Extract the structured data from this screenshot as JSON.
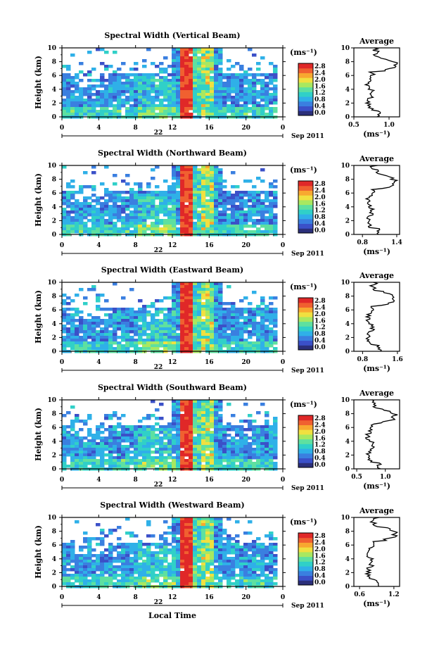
{
  "figure": {
    "xlabel": "Local Time",
    "date_label": "Sep 2011",
    "day_label": "22"
  },
  "chart_data": [
    {
      "type": "heatmap",
      "title": "Spectral Width (Vertical Beam)",
      "xlabel": "",
      "ylabel": "Height (km)",
      "x_ticks": [
        "0",
        "4",
        "8",
        "12",
        "16",
        "20",
        "0"
      ],
      "y_ticks": [
        "0",
        "2",
        "4",
        "6",
        "8",
        "10"
      ],
      "xlim": [
        0,
        24
      ],
      "ylim": [
        0,
        10
      ],
      "colorbar": {
        "unit": "(ms⁻¹)",
        "ticks": [
          "0.0",
          "0.4",
          "0.8",
          "1.2",
          "1.6",
          "2.0",
          "2.4",
          "2.8"
        ]
      },
      "profile": {
        "title": "Average",
        "xlabel": "(ms⁻¹)",
        "x_ticks": [
          "0.5",
          "1.0"
        ],
        "xlim": [
          0.5,
          1.15
        ],
        "y_ticks": [
          "0",
          "2",
          "4",
          "6",
          "8",
          "10"
        ]
      }
    },
    {
      "type": "heatmap",
      "title": "Spectral Width (Northward Beam)",
      "xlabel": "",
      "ylabel": "Height (km)",
      "x_ticks": [
        "0",
        "4",
        "8",
        "12",
        "16",
        "20",
        "0"
      ],
      "y_ticks": [
        "0",
        "2",
        "4",
        "6",
        "8",
        "10"
      ],
      "xlim": [
        0,
        24
      ],
      "ylim": [
        0,
        10
      ],
      "colorbar": {
        "unit": "(ms⁻¹)",
        "ticks": [
          "0.0",
          "0.4",
          "0.8",
          "1.2",
          "1.6",
          "2.0",
          "2.4",
          "2.8"
        ]
      },
      "profile": {
        "title": "Average",
        "xlabel": "(ms⁻¹)",
        "x_ticks": [
          "0.8",
          "1.4"
        ],
        "xlim": [
          0.65,
          1.45
        ],
        "y_ticks": [
          "0",
          "2",
          "4",
          "6",
          "8",
          "10"
        ]
      }
    },
    {
      "type": "heatmap",
      "title": "Spectral Width (Eastward Beam)",
      "xlabel": "",
      "ylabel": "Height (km)",
      "x_ticks": [
        "0",
        "4",
        "8",
        "12",
        "16",
        "20",
        "0"
      ],
      "y_ticks": [
        "0",
        "2",
        "4",
        "6",
        "8",
        "10"
      ],
      "xlim": [
        0,
        24
      ],
      "ylim": [
        0,
        10
      ],
      "colorbar": {
        "unit": "(ms⁻¹)",
        "ticks": [
          "0.0",
          "0.4",
          "0.8",
          "1.2",
          "1.6",
          "2.0",
          "2.4",
          "2.8"
        ]
      },
      "profile": {
        "title": "Average",
        "xlabel": "(ms⁻¹)",
        "x_ticks": [
          "0.8",
          "1.6"
        ],
        "xlim": [
          0.6,
          1.65
        ],
        "y_ticks": [
          "0",
          "2",
          "4",
          "6",
          "8",
          "10"
        ]
      }
    },
    {
      "type": "heatmap",
      "title": "Spectral Width (Southward Beam)",
      "xlabel": "",
      "ylabel": "Height (km)",
      "x_ticks": [
        "0",
        "4",
        "8",
        "12",
        "16",
        "20",
        "0"
      ],
      "y_ticks": [
        "0",
        "2",
        "4",
        "6",
        "8",
        "10"
      ],
      "xlim": [
        0,
        24
      ],
      "ylim": [
        0,
        10
      ],
      "colorbar": {
        "unit": "(ms⁻¹)",
        "ticks": [
          "0.0",
          "0.4",
          "0.8",
          "1.2",
          "1.6",
          "2.0",
          "2.4",
          "2.8"
        ]
      },
      "profile": {
        "title": "Average",
        "xlabel": "(ms⁻¹)",
        "x_ticks": [
          "0.5",
          "1.0"
        ],
        "xlim": [
          0.45,
          1.25
        ],
        "y_ticks": [
          "0",
          "2",
          "4",
          "6",
          "8",
          "10"
        ]
      }
    },
    {
      "type": "heatmap",
      "title": "Spectral Width (Westward Beam)",
      "xlabel": "Local Time",
      "ylabel": "Height (km)",
      "x_ticks": [
        "0",
        "4",
        "8",
        "12",
        "16",
        "20",
        "0"
      ],
      "y_ticks": [
        "0",
        "2",
        "4",
        "6",
        "8",
        "10"
      ],
      "xlim": [
        0,
        24
      ],
      "ylim": [
        0,
        10
      ],
      "colorbar": {
        "unit": "(ms⁻¹)",
        "ticks": [
          "0.0",
          "0.4",
          "0.8",
          "1.2",
          "1.6",
          "2.0",
          "2.4",
          "2.8"
        ]
      },
      "profile": {
        "title": "Average",
        "xlabel": "(ms⁻¹)",
        "x_ticks": [
          "0.6",
          "1.2"
        ],
        "xlim": [
          0.5,
          1.3
        ],
        "y_ticks": [
          "0",
          "2",
          "4",
          "6",
          "8",
          "10"
        ]
      }
    }
  ],
  "colors": {
    "scale": [
      "#2b2f7a",
      "#3b50c8",
      "#3a7fe0",
      "#2fb0e8",
      "#30d0c8",
      "#5ee0a0",
      "#a8e860",
      "#f0e040",
      "#f8a830",
      "#f06030",
      "#e02828"
    ]
  }
}
